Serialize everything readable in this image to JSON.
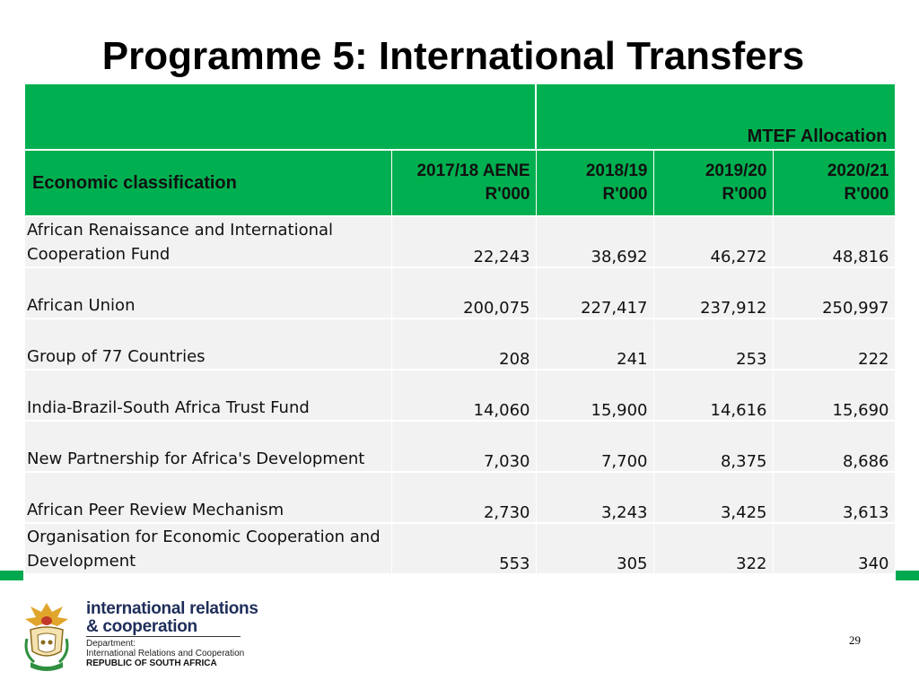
{
  "title": "Programme 5: International Transfers",
  "colors": {
    "header_green": "#00b050",
    "row_bg": "#f2f2f2",
    "accent_green": "#00a94f",
    "brand_navy": "#1f2e5a"
  },
  "table": {
    "mtef_label": "MTEF Allocation",
    "label_header": "Economic classification",
    "year_headers": [
      {
        "year": "2017/18 AENE",
        "unit": "R'000"
      },
      {
        "year": "2018/19",
        "unit": "R'000"
      },
      {
        "year": "2019/20",
        "unit": "R'000"
      },
      {
        "year": "2020/21",
        "unit": "R'000"
      }
    ],
    "rows": [
      {
        "name_line1": "African Renaissance and International",
        "name_line2": "Cooperation Fund",
        "values": [
          "22,243",
          "38,692",
          "46,272",
          "48,816"
        ]
      },
      {
        "name_line1": "",
        "name_line2": "African Union",
        "values": [
          "200,075",
          "227,417",
          "237,912",
          "250,997"
        ]
      },
      {
        "name_line1": "",
        "name_line2": "Group of 77 Countries",
        "values": [
          "208",
          "241",
          "253",
          "222"
        ]
      },
      {
        "name_line1": "",
        "name_line2": "India-Brazil-South Africa Trust Fund",
        "values": [
          "14,060",
          "15,900",
          "14,616",
          "15,690"
        ]
      },
      {
        "name_line1": "",
        "name_line2": "New Partnership for Africa's Development",
        "values": [
          "7,030",
          "7,700",
          "8,375",
          "8,686"
        ]
      },
      {
        "name_line1": "",
        "name_line2": "African Peer Review Mechanism",
        "values": [
          "2,730",
          "3,243",
          "3,425",
          "3,613"
        ]
      },
      {
        "name_line1": "Organisation for Economic Cooperation and",
        "name_line2": "Development",
        "values": [
          "553",
          "305",
          "322",
          "340"
        ]
      }
    ]
  },
  "footer": {
    "brand_line1": "international relations",
    "brand_line2": "& cooperation",
    "dept_line1": "Department:",
    "dept_line2": "International Relations and Cooperation",
    "dept_line3": "REPUBLIC OF SOUTH AFRICA",
    "coat_of_arms_icon": "coat-of-arms-icon"
  },
  "page_number": "29"
}
